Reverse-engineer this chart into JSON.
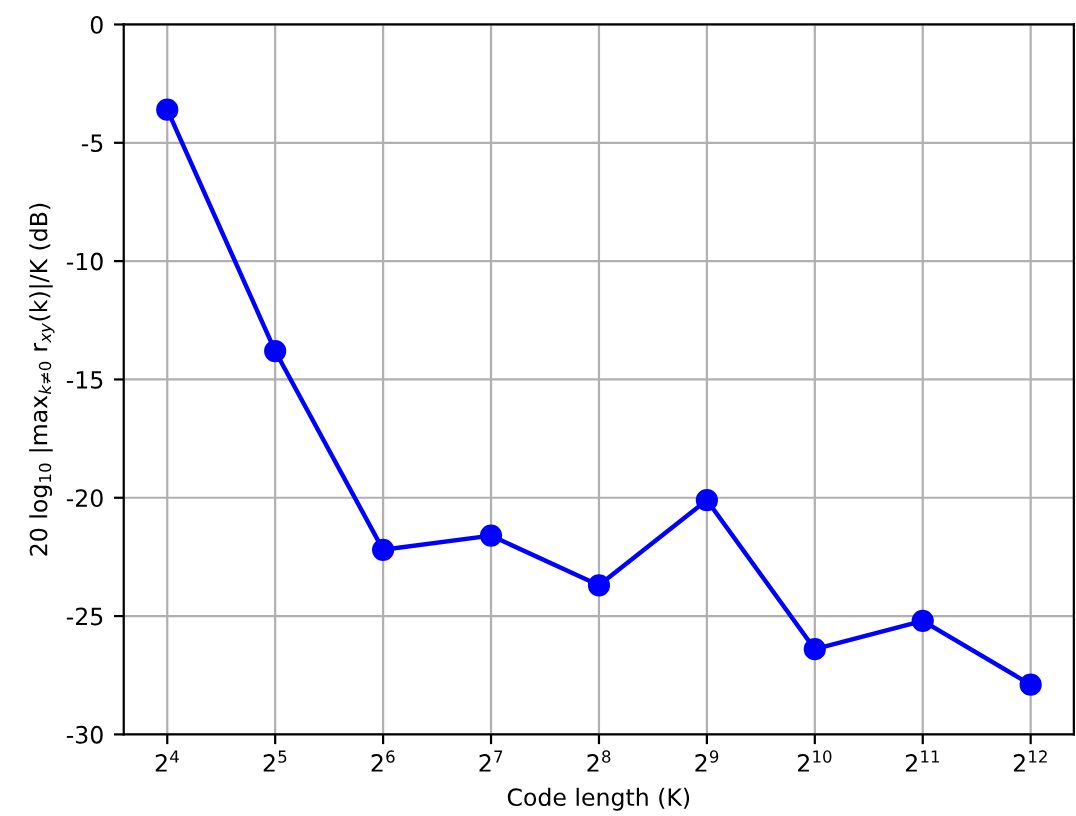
{
  "chart_data": {
    "type": "line",
    "xlabel": "Code length (K)",
    "ylabel": "20 log$_{10}$ |max$_{k≠0}$ r$_{xy}$(k)|/K (dB)",
    "x": [
      16,
      32,
      64,
      128,
      256,
      512,
      1024,
      2048,
      4096
    ],
    "series": [
      {
        "color": "#0000ff",
        "values": [
          -3.6,
          -13.8,
          -22.2,
          -21.6,
          -23.7,
          -20.1,
          -26.4,
          -25.2,
          -27.9
        ]
      }
    ],
    "log": "x",
    "xlim": [
      12.1,
      5405
    ],
    "ylim": [
      -30,
      0
    ],
    "xticks": [
      {
        "value": 16,
        "label": "2$^{4}$"
      },
      {
        "value": 32,
        "label": "2$^{5}$"
      },
      {
        "value": 64,
        "label": "2$^{6}$"
      },
      {
        "value": 128,
        "label": "2$^{7}$"
      },
      {
        "value": 256,
        "label": "2$^{8}$"
      },
      {
        "value": 512,
        "label": "2$^{9}$"
      },
      {
        "value": 1024,
        "label": "2$^{10}$"
      },
      {
        "value": 2048,
        "label": "2$^{11}$"
      },
      {
        "value": 4096,
        "label": "2$^{12}$"
      }
    ],
    "yticks": [
      -30,
      -25,
      -20,
      -15,
      -10,
      -5,
      0
    ],
    "grid": true,
    "marker": "circle",
    "line_style": "solid"
  }
}
